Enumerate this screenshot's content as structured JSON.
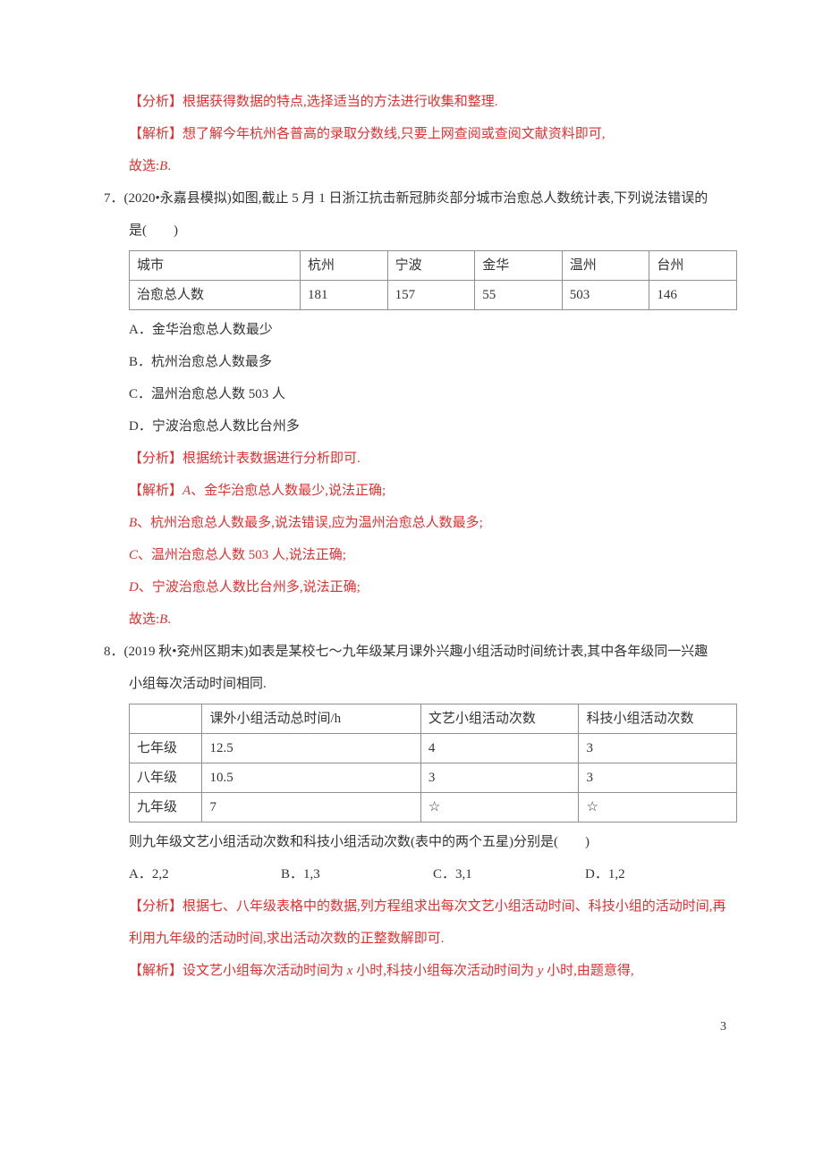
{
  "q6_tail": {
    "analysis_label": "【分析】",
    "analysis_text": "根据获得数据的特点,选择适当的方法进行收集和整理.",
    "solution_label": "【解析】",
    "solution_text": "想了解今年杭州各普高的录取分数线,只要上网查阅或查阅文献资料即可,",
    "therefore": "故选:",
    "answer": "B",
    "period": "."
  },
  "q7": {
    "number": "7．",
    "problem_a": "(2020•永嘉县模拟)如图,截止 5 月 1 日浙江抗击新冠肺炎部分城市治愈总人数统计表,下列说法错误的",
    "problem_b": "是(　　)",
    "table": {
      "headers": [
        "城市",
        "杭州",
        "宁波",
        "金华",
        "温州",
        "台州"
      ],
      "row_label": "治愈总人数",
      "row_values": [
        "181",
        "157",
        "55",
        "503",
        "146"
      ]
    },
    "opt_a": "A．金华治愈总人数最少",
    "opt_b": "B．杭州治愈总人数最多",
    "opt_c": "C．温州治愈总人数 503 人",
    "opt_d": "D．宁波治愈总人数比台州多",
    "analysis_label": "【分析】",
    "analysis_text": "根据统计表数据进行分析即可.",
    "solution_label": "【解析】",
    "sol_a_pre": "A",
    "sol_a_text": "、金华治愈总人数最少,说法正确;",
    "sol_b_pre": "B",
    "sol_b_text": "、杭州治愈总人数最多,说法错误,应为温州治愈总人数最多;",
    "sol_c_pre": "C",
    "sol_c_text": "、温州治愈总人数 503 人,说法正确;",
    "sol_d_pre": "D",
    "sol_d_text": "、宁波治愈总人数比台州多,说法正确;",
    "therefore": "故选:",
    "answer": "B",
    "period": "."
  },
  "q8": {
    "number": "8．",
    "problem_a": "(2019 秋•兖州区期末)如表是某校七～九年级某月课外兴趣小组活动时间统计表,其中各年级同一兴趣",
    "problem_b": "小组每次活动时间相同.",
    "table": {
      "headers": [
        "",
        "课外小组活动总时间/h",
        "文艺小组活动次数",
        "科技小组活动次数"
      ],
      "rows": [
        [
          "七年级",
          "12.5",
          "4",
          "3"
        ],
        [
          "八年级",
          "10.5",
          "3",
          "3"
        ],
        [
          "九年级",
          "7",
          "☆",
          "☆"
        ]
      ],
      "col_widths": [
        "12%",
        "36%",
        "26%",
        "26%"
      ]
    },
    "question_tail": "则九年级文艺小组活动次数和科技小组活动次数(表中的两个五星)分别是(　　)",
    "opt_a": "A．2,2",
    "opt_b": "B．1,3",
    "opt_c": "C．3,1",
    "opt_d": "D．1,2",
    "analysis_label": "【分析】",
    "analysis_text_a": "根据七、八年级表格中的数据,列方程组求出每次文艺小组活动时间、科技小组的活动时间,再",
    "analysis_text_b": "利用九年级的活动时间,求出活动次数的正整数解即可.",
    "solution_label": "【解析】",
    "solution_text_a": "设文艺小组每次活动时间为 ",
    "var_x": "x",
    "solution_text_b": " 小时,科技小组每次活动时间为 ",
    "var_y": "y",
    "solution_text_c": " 小时,由题意得,"
  },
  "page_number": "3"
}
